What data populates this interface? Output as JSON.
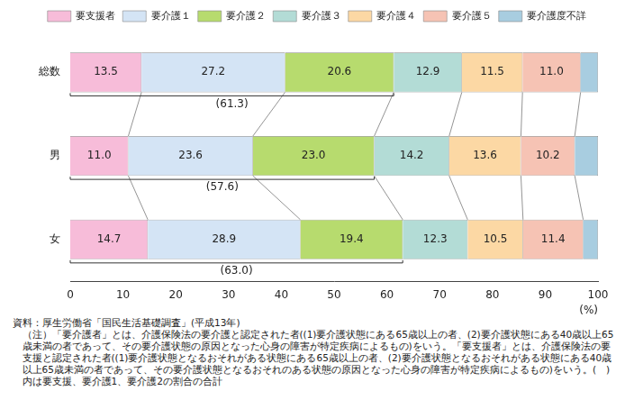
{
  "chart_data": {
    "type": "bar",
    "orientation": "horizontal",
    "stacked": true,
    "categories": [
      "総数",
      "男",
      "女"
    ],
    "series": [
      {
        "name": "要支援者",
        "color": "#f7bcd9",
        "values": [
          13.5,
          11.0,
          14.7
        ],
        "value_labels": [
          "13.5",
          "11.0",
          "14.7"
        ]
      },
      {
        "name": "要介護１",
        "color": "#d4e4f5",
        "values": [
          27.2,
          23.6,
          28.9
        ],
        "value_labels": [
          "27.2",
          "23.6",
          "28.9"
        ]
      },
      {
        "name": "要介護２",
        "color": "#b7db6e",
        "values": [
          20.6,
          23.0,
          19.4
        ],
        "value_labels": [
          "20.6",
          "23.0",
          "19.4"
        ]
      },
      {
        "name": "要介護３",
        "color": "#b3dcd6",
        "values": [
          12.9,
          14.2,
          12.3
        ],
        "value_labels": [
          "12.9",
          "14.2",
          "12.3"
        ]
      },
      {
        "name": "要介護４",
        "color": "#fcd8a4",
        "values": [
          11.5,
          13.6,
          10.5
        ],
        "value_labels": [
          "11.5",
          "13.6",
          "10.5"
        ]
      },
      {
        "name": "要介護５",
        "color": "#f6c3b4",
        "values": [
          11.0,
          10.2,
          11.4
        ],
        "value_labels": [
          "11.0",
          "10.2",
          "11.4"
        ]
      },
      {
        "name": "要介護度不詳",
        "color": "#a8cde0",
        "values": [
          3.3,
          4.4,
          2.8
        ],
        "value_labels": [
          null,
          null,
          null
        ]
      }
    ],
    "data_labels": true,
    "annotations": [
      {
        "category": "総数",
        "value": 61.3,
        "label": "(61.3)"
      },
      {
        "category": "男",
        "value": 57.6,
        "label": "(57.6)"
      },
      {
        "category": "女",
        "value": 63.0,
        "label": "(63.0)"
      }
    ],
    "x_label": "(%)",
    "xlim": [
      0,
      100
    ],
    "xticks": [
      0,
      10,
      20,
      30,
      40,
      50,
      60,
      70,
      80,
      90,
      100
    ],
    "grid": false,
    "legend": "top",
    "source": "資料：厚生労働省「国民生活基礎調査」(平成13年)",
    "note": "（注）「要介護者」とは、介護保険法の要介護と認定された者((1)要介護状態にある65歳以上の者、(2)要介護状態にある40歳以上65歳未満の者であって、その要介護状態の原因となった心身の障害が特定疾病によるもの)をいう。「要支援者」とは、介護保険法の要支援と認定された者((1)要介護状態となるおそれがある状態にある65歳以上の者、(2)要介護状態となるおそれがある状態にある40歳以上65歳未満の者であって、その要介護状態となるおそれのある状態の原因となった心身の障害が特定疾病によるもの)をいう。(　)内は要支援、要介護1、要介護2の割合の合計"
  }
}
